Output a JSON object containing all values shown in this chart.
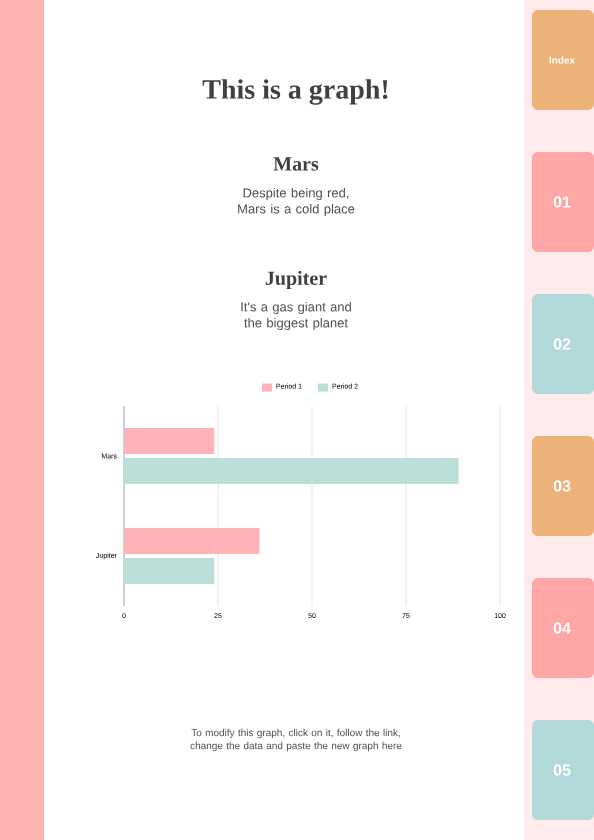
{
  "chart_data": {
    "type": "bar",
    "orientation": "horizontal",
    "title": "This is a graph!",
    "categories": [
      "Mars",
      "Jupiter"
    ],
    "series": [
      {
        "name": "Period 1",
        "color": "#ffb3b8",
        "values": [
          24,
          36
        ]
      },
      {
        "name": "Period 2",
        "color": "#b9dfd8",
        "values": [
          89,
          24
        ]
      }
    ],
    "xlim": [
      0,
      100
    ],
    "xticks": [
      0,
      25,
      50,
      75,
      100
    ],
    "grid": "x",
    "legend": "top",
    "annotations": [
      "Mars",
      "Despite being red, Mars is a cold place",
      "Jupiter",
      "It's a gas giant and the biggest planet",
      "To modify this graph, click on it, follow the link, change the data and paste the new graph here",
      "Index",
      "01",
      "02",
      "03",
      "04",
      "05"
    ]
  }
}
